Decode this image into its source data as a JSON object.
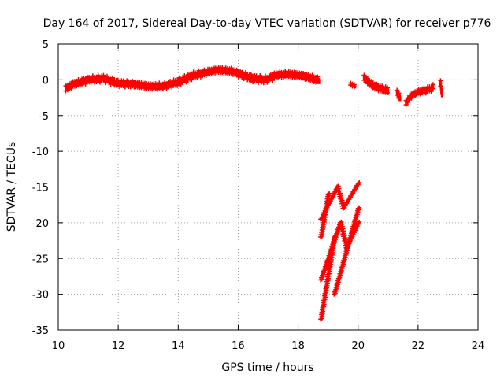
{
  "chart_data": {
    "type": "scatter",
    "title": "Day 164 of 2017, Sidereal Day-to-day VTEC variation (SDTVAR) for receiver p776",
    "xlabel": "GPS time / hours",
    "ylabel": "SDTVAR / TECUs",
    "xlim": [
      10,
      24
    ],
    "ylim": [
      -35,
      5
    ],
    "x_ticks": [
      10,
      12,
      14,
      16,
      18,
      20,
      22,
      24
    ],
    "y_ticks": [
      5,
      0,
      -5,
      -10,
      -15,
      -20,
      -25,
      -30,
      -35
    ],
    "grid": true,
    "marker": "+",
    "series": [
      {
        "name": "SDTVAR",
        "color": "#ff0000",
        "bands": [
          {
            "x": [
              10.25,
              10.5,
              11.0,
              11.5,
              12.0,
              12.5,
              13.0,
              13.5,
              14.0,
              14.5,
              15.0,
              15.3,
              15.8,
              16.2,
              16.5,
              16.9,
              17.3,
              17.7,
              18.1,
              18.4,
              18.7
            ],
            "y": [
              -1.2,
              -0.6,
              0.0,
              0.2,
              -0.5,
              -0.6,
              -0.9,
              -0.9,
              -0.3,
              0.6,
              1.1,
              1.4,
              1.2,
              0.6,
              0.2,
              0.0,
              0.7,
              0.8,
              0.6,
              0.3,
              -0.1
            ],
            "spread": 0.7
          },
          {
            "x": [
              19.75,
              19.9
            ],
            "y": [
              -0.6,
              -0.9
            ],
            "spread": 0.3
          },
          {
            "x": [
              20.2,
              20.4,
              20.6,
              20.8,
              21.0
            ],
            "y": [
              0.3,
              -0.5,
              -1.0,
              -1.3,
              -1.5
            ],
            "spread": 0.7
          },
          {
            "x": [
              21.3,
              21.4
            ],
            "y": [
              -1.8,
              -2.5
            ],
            "spread": 0.7
          },
          {
            "x": [
              21.6,
              21.75,
              22.0,
              22.3,
              22.5
            ],
            "y": [
              -3.2,
              -2.3,
              -1.7,
              -1.4,
              -1.1
            ],
            "spread": 0.6
          },
          {
            "x": [
              22.75,
              22.8
            ],
            "y": [
              -0.5,
              -2.2
            ],
            "spread": 0.8
          }
        ],
        "segments": [
          {
            "x": [
              18.75,
              19.3,
              19.5,
              20.0
            ],
            "y": [
              -19.5,
              -15.0,
              -18.0,
              -14.5
            ]
          },
          {
            "x": [
              18.75,
              19.0
            ],
            "y": [
              -22.0,
              -16.0
            ]
          },
          {
            "x": [
              18.75,
              19.4,
              19.6,
              20.0
            ],
            "y": [
              -28.0,
              -20.0,
              -23.5,
              -20.0
            ]
          },
          {
            "x": [
              18.75,
              19.2
            ],
            "y": [
              -33.5,
              -22.0
            ]
          },
          {
            "x": [
              19.2,
              20.0
            ],
            "y": [
              -30.0,
              -18.0
            ]
          }
        ]
      }
    ]
  }
}
